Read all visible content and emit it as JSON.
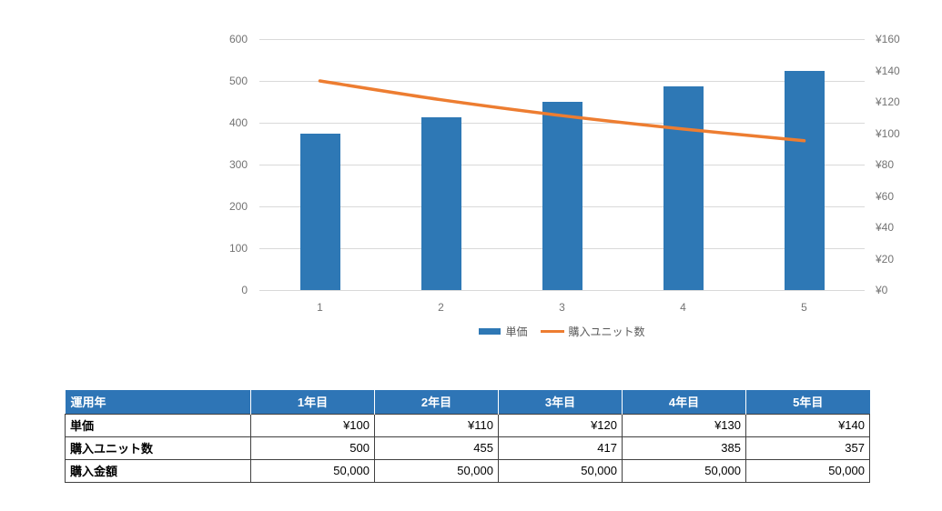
{
  "chart_data": {
    "type": "combo",
    "categories": [
      "1",
      "2",
      "3",
      "4",
      "5"
    ],
    "series": [
      {
        "name": "単価",
        "type": "bar",
        "axis": "right",
        "color": "#2e78b5",
        "values": [
          100,
          110,
          120,
          130,
          140
        ]
      },
      {
        "name": "購入ユニット数",
        "type": "line",
        "axis": "left",
        "color": "#ed7d31",
        "values": [
          500,
          455,
          417,
          385,
          357
        ]
      }
    ],
    "left_axis": {
      "min": 0,
      "max": 600,
      "step": 100,
      "ticks": [
        "0",
        "100",
        "200",
        "300",
        "400",
        "500",
        "600"
      ]
    },
    "right_axis": {
      "min": 0,
      "max": 160,
      "step": 20,
      "ticks": [
        "¥0",
        "¥20",
        "¥40",
        "¥60",
        "¥80",
        "¥100",
        "¥120",
        "¥140",
        "¥160"
      ]
    },
    "grid": true,
    "grid_color": "#d9d9d9",
    "legend_position": "bottom",
    "title": "",
    "xlabel": "",
    "ylabel": ""
  },
  "table": {
    "header_bg": "#2e75b6",
    "header_text_color": "#ffffff",
    "columns": [
      "運用年",
      "1年目",
      "2年目",
      "3年目",
      "4年目",
      "5年目"
    ],
    "rows": [
      {
        "label": "単価",
        "values": [
          "¥100",
          "¥110",
          "¥120",
          "¥130",
          "¥140"
        ]
      },
      {
        "label": "購入ユニット数",
        "values": [
          "500",
          "455",
          "417",
          "385",
          "357"
        ]
      },
      {
        "label": "購入金額",
        "values": [
          "50,000",
          "50,000",
          "50,000",
          "50,000",
          "50,000"
        ]
      }
    ]
  }
}
